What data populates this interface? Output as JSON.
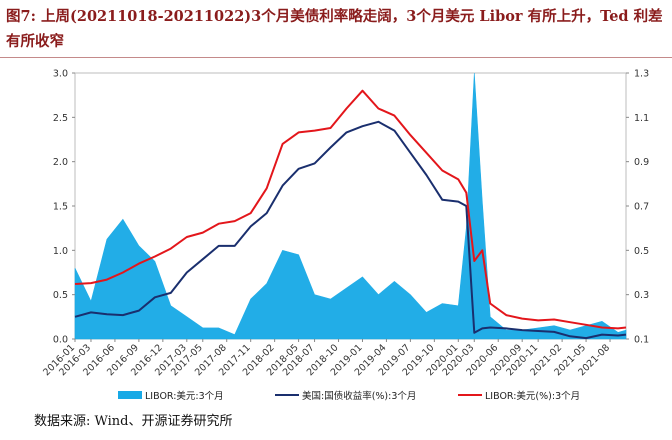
{
  "title": "图7:  上周(20211018-20211022)3个月美债利率略走阔，3个月美元 Libor 有所上升，Ted 利差有所收窄",
  "source": "数据来源:  Wind、开源证券研究所",
  "colors": {
    "title": "#8a1c1c",
    "libor_area": "#17a9e6",
    "treasury": "#1a2f6e",
    "libor_line": "#e3161b"
  },
  "chart_data": {
    "type": "area",
    "title": "图7:  上周(20211018-20211022)3个月美债利率略走阔，3个月美元 Libor 有所上升，Ted 利差有所收窄",
    "x_ticks": [
      "2016-01",
      "2016-03",
      "2016-06",
      "2016-09",
      "2016-12",
      "2017-03",
      "2017-05",
      "2017-08",
      "2017-11",
      "2018-02",
      "2018-05",
      "2018-07",
      "2018-10",
      "2019-01",
      "2019-04",
      "2019-07",
      "2019-10",
      "2020-01",
      "2020-03",
      "2020-06",
      "2020-09",
      "2020-11",
      "2021-02",
      "2021-05",
      "2021-08"
    ],
    "x_start": "2016-01",
    "x_end": "2021-10",
    "ylim_left": [
      0,
      3.0
    ],
    "y_ticks_left": [
      "0.0",
      "0.5",
      "1.0",
      "1.5",
      "2.0",
      "2.5",
      "3.0"
    ],
    "ylim_right": [
      0.1,
      1.3
    ],
    "y_ticks_right": [
      "0.1",
      "0.3",
      "0.5",
      "0.7",
      "0.9",
      "1.1",
      "1.3"
    ],
    "legend_position": "bottom",
    "series": [
      {
        "name": "LIBOR:美元:3个月",
        "axis": "right",
        "type": "area",
        "x": [
          "2016-01",
          "2016-03",
          "2016-05",
          "2016-07",
          "2016-09",
          "2016-11",
          "2017-01",
          "2017-03",
          "2017-05",
          "2017-07",
          "2017-09",
          "2017-11",
          "2018-01",
          "2018-03",
          "2018-05",
          "2018-07",
          "2018-09",
          "2018-11",
          "2019-01",
          "2019-03",
          "2019-05",
          "2019-07",
          "2019-09",
          "2019-11",
          "2020-01",
          "2020-02",
          "2020-03",
          "2020-04",
          "2020-05",
          "2020-07",
          "2020-09",
          "2020-11",
          "2021-01",
          "2021-03",
          "2021-05",
          "2021-07",
          "2021-09",
          "2021-10"
        ],
        "values": [
          0.42,
          0.27,
          0.55,
          0.64,
          0.52,
          0.45,
          0.25,
          0.2,
          0.15,
          0.15,
          0.12,
          0.28,
          0.35,
          0.5,
          0.48,
          0.3,
          0.28,
          0.33,
          0.38,
          0.3,
          0.36,
          0.3,
          0.22,
          0.26,
          0.25,
          0.6,
          1.3,
          0.72,
          0.2,
          0.14,
          0.14,
          0.15,
          0.16,
          0.14,
          0.16,
          0.18,
          0.13,
          0.14
        ]
      },
      {
        "name": "美国:国债收益率(%):3个月",
        "axis": "left",
        "type": "line",
        "x": [
          "2016-01",
          "2016-03",
          "2016-05",
          "2016-07",
          "2016-09",
          "2016-11",
          "2017-01",
          "2017-03",
          "2017-05",
          "2017-07",
          "2017-09",
          "2017-11",
          "2018-01",
          "2018-03",
          "2018-05",
          "2018-07",
          "2018-09",
          "2018-11",
          "2019-01",
          "2019-03",
          "2019-05",
          "2019-07",
          "2019-09",
          "2019-11",
          "2020-01",
          "2020-02",
          "2020-03",
          "2020-04",
          "2020-05",
          "2020-07",
          "2020-09",
          "2020-11",
          "2021-01",
          "2021-03",
          "2021-05",
          "2021-07",
          "2021-09",
          "2021-10"
        ],
        "values": [
          0.25,
          0.3,
          0.28,
          0.27,
          0.32,
          0.47,
          0.52,
          0.75,
          0.9,
          1.05,
          1.05,
          1.27,
          1.42,
          1.73,
          1.92,
          1.98,
          2.16,
          2.33,
          2.4,
          2.45,
          2.35,
          2.1,
          1.85,
          1.57,
          1.55,
          1.5,
          0.07,
          0.12,
          0.13,
          0.12,
          0.1,
          0.09,
          0.08,
          0.03,
          0.01,
          0.05,
          0.04,
          0.05
        ]
      },
      {
        "name": "LIBOR:美元(%):3个月",
        "axis": "left",
        "type": "line",
        "x": [
          "2016-01",
          "2016-03",
          "2016-05",
          "2016-07",
          "2016-09",
          "2016-11",
          "2017-01",
          "2017-03",
          "2017-05",
          "2017-07",
          "2017-09",
          "2017-11",
          "2018-01",
          "2018-03",
          "2018-05",
          "2018-07",
          "2018-09",
          "2018-11",
          "2019-01",
          "2019-03",
          "2019-05",
          "2019-07",
          "2019-09",
          "2019-11",
          "2020-01",
          "2020-02",
          "2020-03",
          "2020-04",
          "2020-05",
          "2020-07",
          "2020-09",
          "2020-11",
          "2021-01",
          "2021-03",
          "2021-05",
          "2021-07",
          "2021-09",
          "2021-10"
        ],
        "values": [
          0.62,
          0.63,
          0.67,
          0.75,
          0.85,
          0.93,
          1.02,
          1.15,
          1.2,
          1.3,
          1.33,
          1.42,
          1.7,
          2.2,
          2.33,
          2.35,
          2.38,
          2.6,
          2.8,
          2.6,
          2.52,
          2.3,
          2.1,
          1.9,
          1.8,
          1.65,
          0.88,
          1.0,
          0.4,
          0.27,
          0.23,
          0.21,
          0.22,
          0.19,
          0.16,
          0.13,
          0.12,
          0.13
        ]
      }
    ]
  }
}
